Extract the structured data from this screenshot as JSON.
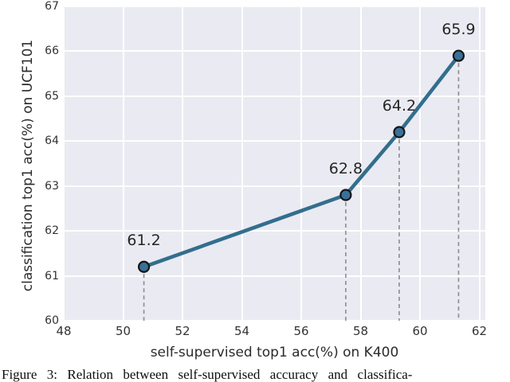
{
  "chart_data": {
    "type": "line",
    "title": "",
    "xlabel": "self-supervised top1 acc(%) on K400",
    "ylabel": "classification top1 acc(%) on UCF101",
    "x": [
      50.7,
      57.5,
      59.3,
      61.3
    ],
    "y": [
      61.2,
      62.8,
      64.2,
      65.9
    ],
    "point_labels": [
      "61.2",
      "62.8",
      "64.2",
      "65.9"
    ],
    "xlim": [
      48,
      62.2
    ],
    "ylim": [
      60,
      67
    ],
    "xticks": [
      "48",
      "50",
      "52",
      "54",
      "56",
      "58",
      "60",
      "62"
    ],
    "yticks": [
      "60",
      "61",
      "62",
      "63",
      "64",
      "65",
      "66",
      "67"
    ],
    "grid": true,
    "legend_position": "none",
    "colors": {
      "plot_background": "#eaeaf2",
      "gridline": "#ffffff",
      "line": "#336e8e",
      "marker_fill": "#387198",
      "marker_edge": "#151515",
      "dropline": "#8c8c8c",
      "tick_text": "#333333"
    }
  },
  "caption": {
    "text": "Figure 3: Relation between self-supervised accuracy and classifica-"
  }
}
